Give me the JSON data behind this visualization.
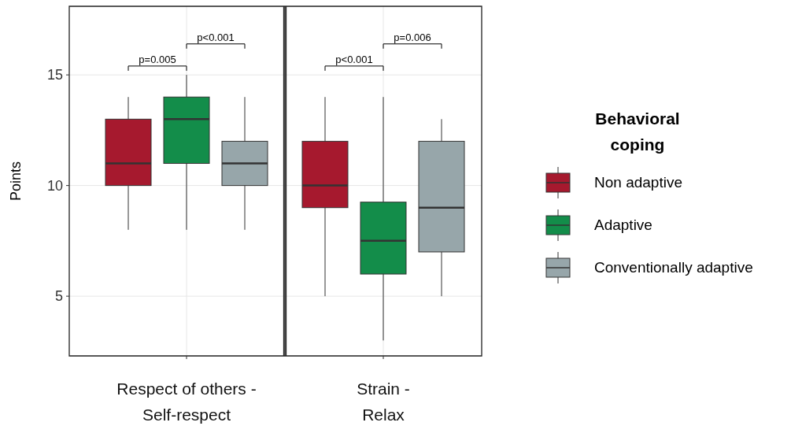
{
  "chart_data": {
    "type": "box",
    "categories": [
      "Respect of others - Self-respect",
      "Strain - Relax"
    ],
    "ylabel": "Points",
    "ylim": [
      2.3,
      18.1
    ],
    "yticks": [
      5,
      10,
      15
    ],
    "grid": true,
    "legend": "right",
    "legend_title": "Behavioral coping",
    "annotations": [
      "p=0.005",
      "p<0.001",
      "p<0.001",
      "p=0.006"
    ],
    "series": [
      {
        "name": "Non adaptive",
        "color": "#a6192e",
        "boxes": [
          {
            "low": 8,
            "q1": 10,
            "median": 11,
            "q3": 13,
            "high": 14
          },
          {
            "low": 5,
            "q1": 9,
            "median": 10,
            "q3": 12,
            "high": 14
          }
        ]
      },
      {
        "name": "Adaptive",
        "color": "#138d4a",
        "boxes": [
          {
            "low": 8,
            "q1": 11,
            "median": 13,
            "q3": 14,
            "high": 15
          },
          {
            "low": 3,
            "q1": 6,
            "median": 7.5,
            "q3": 9.25,
            "high": 14
          }
        ]
      },
      {
        "name": "Conventionally adaptive",
        "color": "#97a6aa",
        "boxes": [
          {
            "low": 8,
            "q1": 10,
            "median": 11,
            "q3": 12,
            "high": 14
          },
          {
            "low": 5,
            "q1": 7,
            "median": 9,
            "q3": 12,
            "high": 13
          }
        ]
      }
    ]
  }
}
